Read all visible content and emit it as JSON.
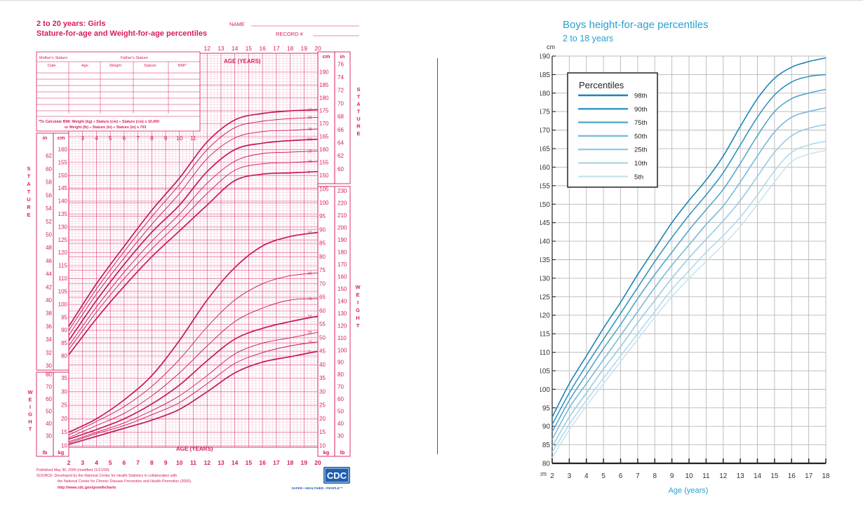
{
  "cdc": {
    "title": "2 to 20 years: Girls",
    "subtitle": "Stature-for-age and Weight-for-age percentiles",
    "name_label": "NAME",
    "record_label": "RECORD #",
    "mothers_stature": "Mother's Stature",
    "fathers_stature": "Father's Stature",
    "table_headers": [
      "Date",
      "Age",
      "Weight",
      "Stature",
      "BMI*"
    ],
    "bmi_line1": "*To Calculate BMI: Weight (kg) ÷ Stature (cm) ÷ Stature (cm) x 10,000",
    "bmi_line2": "or Weight (lb) ÷ Stature (in) ÷ Stature (in) x 703",
    "age_label": "AGE (YEARS)",
    "stature_word": "STATURE",
    "weight_word": "WEIGHT",
    "unit_in": "in",
    "unit_cm": "cm",
    "unit_lb": "lb",
    "unit_kg": "kg",
    "published": "Published May 30, 2000 (modified 11/21/00).",
    "source1": "SOURCE: Developed by the National Center for Health Statistics in collaboration with",
    "source2": "the National Center for Chronic Disease Prevention and Health Promotion (2000).",
    "url": "http://www.cdc.gov/growthcharts",
    "logo_text": "CDC",
    "logo_tagline": "SAFER • HEALTHIER • PEOPLE™",
    "chart_data": {
      "type": "line",
      "title": "2 to 20 years: Girls",
      "subtitle": "Stature-for-age and Weight-for-age percentiles",
      "xlabel": "AGE (YEARS)",
      "xlim": [
        2,
        20
      ],
      "x_ticks": [
        2,
        3,
        4,
        5,
        6,
        7,
        8,
        9,
        10,
        11,
        12,
        13,
        14,
        15,
        16,
        17,
        18,
        19,
        20
      ],
      "top_x_ticks": [
        12,
        13,
        14,
        15,
        16,
        17,
        18,
        19,
        20
      ],
      "mid_x_ticks": [
        3,
        4,
        5,
        6,
        7,
        8,
        9,
        10,
        11
      ],
      "stature_cm_ticks": [
        80,
        85,
        90,
        95,
        100,
        105,
        110,
        115,
        120,
        125,
        130,
        135,
        140,
        145,
        150,
        155,
        160,
        165,
        170,
        175,
        180,
        185,
        190
      ],
      "stature_in_ticks_left": [
        30,
        32,
        34,
        36,
        38,
        40,
        42,
        44,
        46,
        48,
        50,
        52,
        54,
        56,
        58,
        60,
        62
      ],
      "stature_in_ticks_right": [
        60,
        62,
        64,
        66,
        68,
        70,
        72,
        74,
        76
      ],
      "weight_kg_ticks": [
        10,
        15,
        20,
        25,
        30,
        35,
        40,
        45,
        50,
        55,
        60,
        65,
        70,
        75,
        80,
        85,
        90,
        95,
        100,
        105
      ],
      "weight_lb_ticks_left": [
        30,
        40,
        50,
        60,
        70,
        80
      ],
      "weight_lb_ticks_right": [
        30,
        40,
        50,
        60,
        70,
        80,
        90,
        100,
        110,
        120,
        130,
        140,
        150,
        160,
        170,
        180,
        190,
        200,
        210,
        220,
        230
      ],
      "percentiles": [
        "97",
        "90",
        "75",
        "50",
        "25",
        "10",
        "3"
      ],
      "stature_series": [
        {
          "name": "97",
          "x": [
            2,
            4,
            6,
            8,
            10,
            12,
            14,
            16,
            18,
            20
          ],
          "y": [
            91.5,
            108,
            122.5,
            136.5,
            149,
            163,
            171.5,
            174,
            175,
            175.5
          ]
        },
        {
          "name": "90",
          "x": [
            2,
            4,
            6,
            8,
            10,
            12,
            14,
            16,
            18,
            20
          ],
          "y": [
            90,
            106,
            120.5,
            134,
            146.5,
            160,
            168.5,
            171,
            172,
            172.5
          ]
        },
        {
          "name": "75",
          "x": [
            2,
            4,
            6,
            8,
            10,
            12,
            14,
            16,
            18,
            20
          ],
          "y": [
            88,
            104,
            118,
            131,
            143,
            156.5,
            164.5,
            167,
            167.5,
            168
          ]
        },
        {
          "name": "50",
          "x": [
            2,
            4,
            6,
            8,
            10,
            12,
            14,
            16,
            18,
            20
          ],
          "y": [
            86,
            101.5,
            115.5,
            128,
            138.5,
            151.5,
            160,
            162.5,
            163.5,
            164
          ]
        },
        {
          "name": "25",
          "x": [
            2,
            4,
            6,
            8,
            10,
            12,
            14,
            16,
            18,
            20
          ],
          "y": [
            84,
            99,
            112.5,
            124.5,
            135,
            147,
            155.5,
            158.5,
            159,
            159.5
          ]
        },
        {
          "name": "10",
          "x": [
            2,
            4,
            6,
            8,
            10,
            12,
            14,
            16,
            18,
            20
          ],
          "y": [
            82.5,
            97,
            110,
            121.5,
            132,
            143,
            152,
            154.5,
            155,
            155.5
          ]
        },
        {
          "name": "3",
          "x": [
            2,
            4,
            6,
            8,
            10,
            12,
            14,
            16,
            18,
            20
          ],
          "y": [
            80.5,
            94.5,
            107,
            118.5,
            128.5,
            138.5,
            148,
            150.5,
            151,
            151.5
          ]
        }
      ],
      "weight_series": [
        {
          "name": "97",
          "x": [
            2,
            4,
            6,
            8,
            10,
            12,
            14,
            16,
            18,
            20
          ],
          "y": [
            15,
            20,
            27,
            36,
            49,
            64,
            76,
            84,
            87.5,
            89
          ]
        },
        {
          "name": "90",
          "x": [
            2,
            4,
            6,
            8,
            10,
            12,
            14,
            16,
            18,
            20
          ],
          "y": [
            14,
            19,
            24.5,
            32,
            42,
            54,
            64,
            70,
            73,
            74
          ]
        },
        {
          "name": "75",
          "x": [
            2,
            4,
            6,
            8,
            10,
            12,
            14,
            16,
            18,
            20
          ],
          "y": [
            13,
            17.5,
            22,
            28.5,
            37,
            47,
            56,
            61,
            64,
            64.5
          ]
        },
        {
          "name": "50",
          "x": [
            2,
            4,
            6,
            8,
            10,
            12,
            14,
            16,
            18,
            20
          ],
          "y": [
            12.5,
            16,
            20,
            25.5,
            32.5,
            41.5,
            49.5,
            53.5,
            56,
            58
          ]
        },
        {
          "name": "25",
          "x": [
            2,
            4,
            6,
            8,
            10,
            12,
            14,
            16,
            18,
            20
          ],
          "y": [
            11.5,
            15,
            18.5,
            23,
            28.5,
            36,
            44,
            48,
            50,
            52
          ]
        },
        {
          "name": "10",
          "x": [
            2,
            4,
            6,
            8,
            10,
            12,
            14,
            16,
            18,
            20
          ],
          "y": [
            11,
            14.5,
            17.5,
            21.5,
            26,
            33,
            40.5,
            44.5,
            47,
            48.5
          ]
        },
        {
          "name": "3",
          "x": [
            2,
            4,
            6,
            8,
            10,
            12,
            14,
            16,
            18,
            20
          ],
          "y": [
            10.5,
            13.5,
            16.5,
            19.5,
            23.5,
            30,
            37,
            41,
            43,
            45
          ]
        }
      ]
    }
  },
  "boys": {
    "title": "Boys height-for-age percentiles",
    "subtitle": "2 to 18 years",
    "legend_title": "Percentiles",
    "colors": {
      "98th": "#1b84b3",
      "90th": "#3393c0",
      "75th": "#55a7cd",
      "50th": "#79bad8",
      "25th": "#97cbe3",
      "10th": "#b3d9ec",
      "5th": "#c9e4f1"
    },
    "chart_data": {
      "type": "line",
      "title": "Boys height-for-age percentiles",
      "subtitle": "2 to 18 years",
      "xlabel": "Age (years)",
      "ylabel": "cm",
      "xlim": [
        2,
        18
      ],
      "ylim": [
        80,
        190
      ],
      "x_ticks": [
        2,
        3,
        4,
        5,
        6,
        7,
        8,
        9,
        10,
        11,
        12,
        13,
        14,
        15,
        16,
        17,
        18
      ],
      "y_ticks": [
        80,
        85,
        90,
        95,
        100,
        105,
        110,
        115,
        120,
        125,
        130,
        135,
        140,
        145,
        150,
        155,
        160,
        165,
        170,
        175,
        180,
        185,
        190
      ],
      "grid": true,
      "legend": "top-left",
      "series": [
        {
          "name": "98th",
          "x": [
            2,
            3,
            4,
            5,
            6,
            7,
            8,
            9,
            10,
            11,
            12,
            13,
            14,
            15,
            16,
            17,
            18
          ],
          "y": [
            92.5,
            101.5,
            109,
            116.5,
            123.5,
            131,
            138,
            145,
            151,
            156.5,
            163,
            171,
            178.5,
            184,
            187,
            188.5,
            189.5
          ]
        },
        {
          "name": "90th",
          "x": [
            2,
            3,
            4,
            5,
            6,
            7,
            8,
            9,
            10,
            11,
            12,
            13,
            14,
            15,
            16,
            17,
            18
          ],
          "y": [
            90.5,
            99,
            106.5,
            113.5,
            120.5,
            127.5,
            134.5,
            141,
            147,
            152.5,
            158.5,
            166,
            173.5,
            179.5,
            183,
            184.5,
            185
          ]
        },
        {
          "name": "75th",
          "x": [
            2,
            3,
            4,
            5,
            6,
            7,
            8,
            9,
            10,
            11,
            12,
            13,
            14,
            15,
            16,
            17,
            18
          ],
          "y": [
            88.5,
            97,
            104,
            111,
            117.5,
            124.5,
            131,
            137,
            143,
            148.5,
            154,
            161,
            168.5,
            175,
            178.5,
            180,
            181
          ]
        },
        {
          "name": "50th",
          "x": [
            2,
            3,
            4,
            5,
            6,
            7,
            8,
            9,
            10,
            11,
            12,
            13,
            14,
            15,
            16,
            17,
            18
          ],
          "y": [
            86.5,
            95,
            101.5,
            108,
            114.5,
            121,
            127.5,
            133.5,
            139,
            144.5,
            149.5,
            156,
            163,
            169.5,
            173.5,
            175,
            176
          ]
        },
        {
          "name": "25th",
          "x": [
            2,
            3,
            4,
            5,
            6,
            7,
            8,
            9,
            10,
            11,
            12,
            13,
            14,
            15,
            16,
            17,
            18
          ],
          "y": [
            84.5,
            92.5,
            99,
            105.5,
            111.5,
            118,
            124,
            130,
            135.5,
            140.5,
            145.5,
            151,
            157.5,
            164,
            168.5,
            170.5,
            171.5
          ]
        },
        {
          "name": "10th",
          "x": [
            2,
            3,
            4,
            5,
            6,
            7,
            8,
            9,
            10,
            11,
            12,
            13,
            14,
            15,
            16,
            17,
            18
          ],
          "y": [
            83,
            90.5,
            97,
            103,
            109,
            115,
            121,
            127,
            132,
            137,
            141.5,
            146.5,
            152.5,
            159,
            164,
            166,
            167
          ]
        },
        {
          "name": "5th",
          "x": [
            2,
            3,
            4,
            5,
            6,
            7,
            8,
            9,
            10,
            11,
            12,
            13,
            14,
            15,
            16,
            17,
            18
          ],
          "y": [
            81.5,
            89,
            95.5,
            101.5,
            107.5,
            113.5,
            119.5,
            125,
            130,
            134.5,
            139,
            144,
            150,
            156,
            161.5,
            163.5,
            164.5
          ]
        }
      ]
    }
  }
}
